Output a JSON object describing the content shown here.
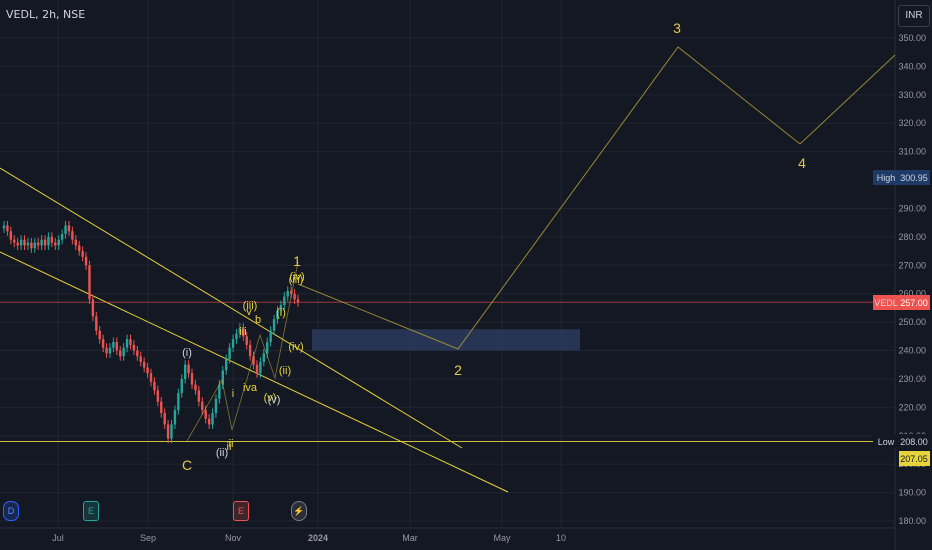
{
  "header": {
    "symbol": "VEDL, 2h, NSE",
    "currency": "INR"
  },
  "events": [
    {
      "name": "dividend-marker",
      "label": "D",
      "x_label": "Jun"
    },
    {
      "name": "earnings-marker-1",
      "label": "E",
      "x_label": "Jul"
    },
    {
      "name": "earnings-marker-2",
      "label": "E",
      "x_label": "Nov"
    },
    {
      "name": "split-marker",
      "label": "⚡",
      "x_label": "Dec"
    }
  ],
  "chart_data": {
    "type": "candlestick",
    "symbol": "VEDL",
    "interval": "2h",
    "exchange": "NSE",
    "y_axis": {
      "ticks": [
        "180.00",
        "190.00",
        "200.00",
        "210.00",
        "220.00",
        "230.00",
        "240.00",
        "250.00",
        "260.00",
        "270.00",
        "280.00",
        "290.00",
        "310.00",
        "320.00",
        "330.00",
        "340.00",
        "350.00"
      ],
      "ylim": [
        178,
        355
      ]
    },
    "x_axis": {
      "ticks": [
        "Jul",
        "Sep",
        "Nov",
        "2024",
        "Mar",
        "May",
        "10"
      ]
    },
    "price_labels": [
      {
        "label": "High",
        "value": "300.95",
        "kind": "high"
      },
      {
        "label": "VEDL",
        "value": "257.00",
        "kind": "last"
      },
      {
        "label": "Low",
        "value": "208.00",
        "kind": "low"
      },
      {
        "label": "",
        "value": "207.05",
        "kind": "marker"
      }
    ],
    "horizontal_lines": [
      {
        "name": "low-line",
        "value": 208,
        "color": "#e6d43a"
      },
      {
        "name": "last-price-line",
        "value": 257,
        "color": "#ef5350"
      }
    ],
    "zone": {
      "name": "target-zone",
      "y_top": 247.5,
      "y_bottom": 240.0,
      "color": "#2a3a5c"
    },
    "wave_labels_major": [
      {
        "text": "3",
        "x_label": "Mar"
      },
      {
        "text": "4",
        "x_label": "May"
      },
      {
        "text": "2",
        "x_label": "Mar"
      },
      {
        "text": "1",
        "x_label": "Dec"
      },
      {
        "text": "C",
        "x_label": "Sep"
      }
    ],
    "wave_labels_minor": [
      "(i)",
      "(ii)",
      "(iii)",
      "(iv)",
      "(v)",
      "ii",
      "iii",
      "iva",
      "v",
      "b",
      "(i)",
      "(ii)",
      "(iii)",
      "(iv)",
      "(v)",
      "i",
      "ii"
    ],
    "price_series": [
      284,
      282,
      279,
      278,
      277,
      279,
      277,
      278,
      276,
      278,
      277,
      279,
      277,
      280,
      278,
      277,
      279,
      281,
      284,
      282,
      279,
      277,
      275,
      273,
      270,
      258,
      252,
      247,
      244,
      241,
      239,
      241,
      243,
      240,
      238,
      241,
      244,
      242,
      240,
      238,
      236,
      234,
      232,
      229,
      226,
      222,
      218,
      214,
      209,
      214,
      219,
      225,
      230,
      235,
      232,
      228,
      226,
      222,
      219,
      216,
      214,
      218,
      223,
      228,
      233,
      237,
      241,
      244,
      246,
      248,
      245,
      242,
      238,
      235,
      232,
      236,
      239,
      243,
      247,
      251,
      254,
      256,
      259,
      261,
      260,
      258,
      257
    ]
  }
}
